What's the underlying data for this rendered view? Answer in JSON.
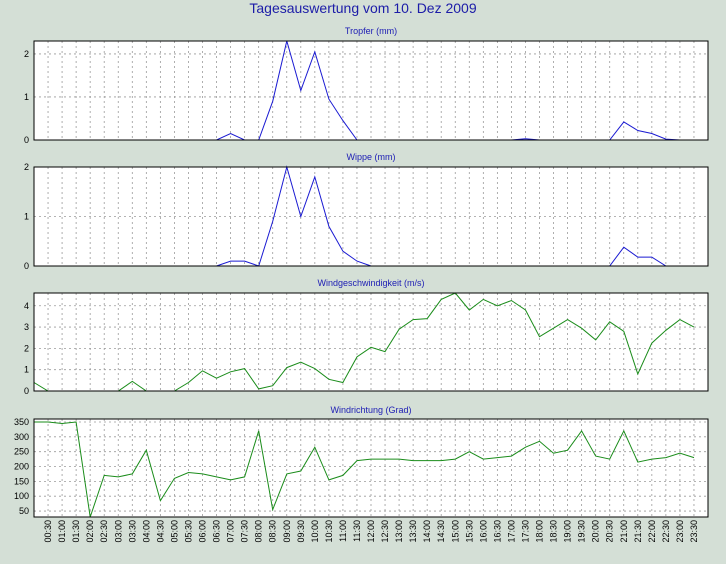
{
  "title": "Tagesauswertung vom 10. Dez 2009",
  "time_labels": [
    "00:30",
    "01:00",
    "01:30",
    "02:00",
    "02:30",
    "03:00",
    "03:30",
    "04:00",
    "04:30",
    "05:00",
    "05:30",
    "06:00",
    "06:30",
    "07:00",
    "07:30",
    "08:00",
    "08:30",
    "09:00",
    "09:30",
    "10:00",
    "10:30",
    "11:00",
    "11:30",
    "12:00",
    "12:30",
    "13:00",
    "13:30",
    "14:00",
    "14:30",
    "15:00",
    "15:30",
    "16:00",
    "16:30",
    "17:00",
    "17:30",
    "18:00",
    "18:30",
    "19:00",
    "19:30",
    "20:00",
    "20:30",
    "21:00",
    "21:30",
    "22:00",
    "22:30",
    "23:00",
    "23:30"
  ],
  "chart_data": [
    {
      "type": "line",
      "title": "Tropfer (mm)",
      "color": "#1a1ad2",
      "ylim": [
        0,
        2.3
      ],
      "yticks": [
        0,
        1,
        2
      ],
      "x": [
        "00:00",
        "00:30",
        "01:00",
        "01:30",
        "02:00",
        "02:30",
        "03:00",
        "03:30",
        "04:00",
        "04:30",
        "05:00",
        "05:30",
        "06:00",
        "06:30",
        "07:00",
        "07:30",
        "08:00",
        "08:30",
        "09:00",
        "09:30",
        "10:00",
        "10:30",
        "11:00",
        "11:30",
        "12:00",
        "12:30",
        "13:00",
        "13:30",
        "14:00",
        "14:30",
        "15:00",
        "15:30",
        "16:00",
        "16:30",
        "17:00",
        "17:30",
        "18:00",
        "18:30",
        "19:00",
        "19:30",
        "20:00",
        "20:30",
        "21:00",
        "21:30",
        "22:00",
        "22:30",
        "23:00",
        "23:30"
      ],
      "values": [
        0,
        0,
        0,
        0,
        0,
        0,
        0,
        0,
        0,
        0,
        0,
        0,
        0,
        0,
        0.15,
        0,
        0,
        0.9,
        2.3,
        1.15,
        2.05,
        0.95,
        0.45,
        0,
        0,
        0,
        0,
        0,
        0,
        0,
        0,
        0,
        0,
        0,
        0,
        0.03,
        0,
        0,
        0,
        0,
        0,
        0,
        0.42,
        0.22,
        0.15,
        0.02,
        0,
        0
      ]
    },
    {
      "type": "line",
      "title": "Wippe (mm)",
      "color": "#1a1ad2",
      "ylim": [
        0,
        2.0
      ],
      "yticks": [
        0,
        1,
        2
      ],
      "x": [
        "00:00",
        "00:30",
        "01:00",
        "01:30",
        "02:00",
        "02:30",
        "03:00",
        "03:30",
        "04:00",
        "04:30",
        "05:00",
        "05:30",
        "06:00",
        "06:30",
        "07:00",
        "07:30",
        "08:00",
        "08:30",
        "09:00",
        "09:30",
        "10:00",
        "10:30",
        "11:00",
        "11:30",
        "12:00",
        "12:30",
        "13:00",
        "13:30",
        "14:00",
        "14:30",
        "15:00",
        "15:30",
        "16:00",
        "16:30",
        "17:00",
        "17:30",
        "18:00",
        "18:30",
        "19:00",
        "19:30",
        "20:00",
        "20:30",
        "21:00",
        "21:30",
        "22:00",
        "22:30",
        "23:00",
        "23:30"
      ],
      "values": [
        0,
        0,
        0,
        0,
        0,
        0,
        0,
        0,
        0,
        0,
        0,
        0,
        0,
        0,
        0.1,
        0.1,
        0,
        0.9,
        2.0,
        1.0,
        1.8,
        0.8,
        0.3,
        0.1,
        0,
        0,
        0,
        0,
        0,
        0,
        0,
        0,
        0,
        0,
        0,
        0,
        0,
        0,
        0,
        0,
        0,
        0,
        0.38,
        0.18,
        0.18,
        0,
        0,
        0
      ]
    },
    {
      "type": "line",
      "title": "Windgeschwindigkeit (m/s)",
      "color": "#1a8c1a",
      "ylim": [
        0,
        4.6
      ],
      "yticks": [
        0,
        1,
        2,
        3,
        4
      ],
      "x": [
        "00:00",
        "00:30",
        "01:00",
        "01:30",
        "02:00",
        "02:30",
        "03:00",
        "03:30",
        "04:00",
        "04:30",
        "05:00",
        "05:30",
        "06:00",
        "06:30",
        "07:00",
        "07:30",
        "08:00",
        "08:30",
        "09:00",
        "09:30",
        "10:00",
        "10:30",
        "11:00",
        "11:30",
        "12:00",
        "12:30",
        "13:00",
        "13:30",
        "14:00",
        "14:30",
        "15:00",
        "15:30",
        "16:00",
        "16:30",
        "17:00",
        "17:30",
        "18:00",
        "18:30",
        "19:00",
        "19:30",
        "20:00",
        "20:30",
        "21:00",
        "21:30",
        "22:00",
        "22:30",
        "23:00",
        "23:30"
      ],
      "values": [
        0.4,
        0,
        0,
        0,
        0,
        0,
        0,
        0.45,
        0,
        0,
        0,
        0.4,
        0.95,
        0.6,
        0.9,
        1.05,
        0.1,
        0.25,
        1.1,
        1.35,
        1.05,
        0.55,
        0.4,
        1.6,
        2.05,
        1.85,
        2.9,
        3.35,
        3.4,
        4.3,
        4.6,
        3.8,
        4.3,
        4.0,
        4.25,
        3.8,
        2.55,
        2.95,
        3.35,
        2.95,
        2.4,
        3.25,
        2.8,
        0.8,
        2.25,
        2.85,
        3.35,
        3.0
      ]
    },
    {
      "type": "line",
      "title": "Windrichtung (Grad)",
      "color": "#1a8c1a",
      "ylim": [
        30,
        360
      ],
      "yticks": [
        50,
        100,
        150,
        200,
        250,
        300,
        350
      ],
      "x": [
        "00:00",
        "00:30",
        "01:00",
        "01:30",
        "02:00",
        "02:30",
        "03:00",
        "03:30",
        "04:00",
        "04:30",
        "05:00",
        "05:30",
        "06:00",
        "06:30",
        "07:00",
        "07:30",
        "08:00",
        "08:30",
        "09:00",
        "09:30",
        "10:00",
        "10:30",
        "11:00",
        "11:30",
        "12:00",
        "12:30",
        "13:00",
        "13:30",
        "14:00",
        "14:30",
        "15:00",
        "15:30",
        "16:00",
        "16:30",
        "17:00",
        "17:30",
        "18:00",
        "18:30",
        "19:00",
        "19:30",
        "20:00",
        "20:30",
        "21:00",
        "21:30",
        "22:00",
        "22:30",
        "23:00",
        "23:30"
      ],
      "values": [
        350,
        350,
        345,
        350,
        30,
        170,
        165,
        175,
        255,
        85,
        160,
        180,
        175,
        165,
        155,
        165,
        320,
        55,
        175,
        185,
        265,
        155,
        170,
        220,
        225,
        225,
        225,
        220,
        220,
        220,
        225,
        250,
        225,
        230,
        235,
        265,
        285,
        245,
        255,
        320,
        235,
        225,
        320,
        215,
        225,
        230,
        245,
        230
      ]
    }
  ]
}
